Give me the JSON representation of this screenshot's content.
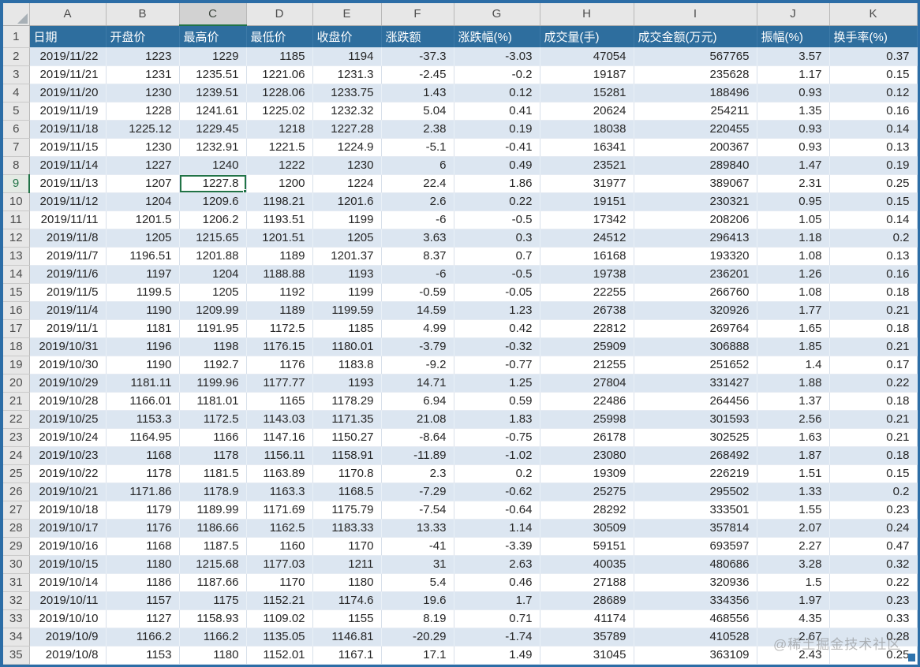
{
  "columns": [
    "A",
    "B",
    "C",
    "D",
    "E",
    "F",
    "G",
    "H",
    "I",
    "J",
    "K"
  ],
  "selected": {
    "row_number": 9,
    "column_letter": "C",
    "column_index": 2,
    "value": "1227.8"
  },
  "watermark": {
    "text": "@稀土掘金技术社区"
  },
  "colors": {
    "header_row_bg": "#2e6e9e",
    "alt_row_bg": "#dce6f1",
    "frame_border": "#2c6da6",
    "selection_green": "#217346",
    "gutter_bg": "#e7e7e7"
  },
  "table": {
    "headers": [
      "日期",
      "开盘价",
      "最高价",
      "最低价",
      "收盘价",
      "涨跌额",
      "涨跌幅(%)",
      "成交量(手)",
      "成交金额(万元)",
      "振幅(%)",
      "换手率(%)"
    ],
    "first_row_number": 2,
    "rows": [
      [
        "2019/11/22",
        "1223",
        "1229",
        "1185",
        "1194",
        "-37.3",
        "-3.03",
        "47054",
        "567765",
        "3.57",
        "0.37"
      ],
      [
        "2019/11/21",
        "1231",
        "1235.51",
        "1221.06",
        "1231.3",
        "-2.45",
        "-0.2",
        "19187",
        "235628",
        "1.17",
        "0.15"
      ],
      [
        "2019/11/20",
        "1230",
        "1239.51",
        "1228.06",
        "1233.75",
        "1.43",
        "0.12",
        "15281",
        "188496",
        "0.93",
        "0.12"
      ],
      [
        "2019/11/19",
        "1228",
        "1241.61",
        "1225.02",
        "1232.32",
        "5.04",
        "0.41",
        "20624",
        "254211",
        "1.35",
        "0.16"
      ],
      [
        "2019/11/18",
        "1225.12",
        "1229.45",
        "1218",
        "1227.28",
        "2.38",
        "0.19",
        "18038",
        "220455",
        "0.93",
        "0.14"
      ],
      [
        "2019/11/15",
        "1230",
        "1232.91",
        "1221.5",
        "1224.9",
        "-5.1",
        "-0.41",
        "16341",
        "200367",
        "0.93",
        "0.13"
      ],
      [
        "2019/11/14",
        "1227",
        "1240",
        "1222",
        "1230",
        "6",
        "0.49",
        "23521",
        "289840",
        "1.47",
        "0.19"
      ],
      [
        "2019/11/13",
        "1207",
        "1227.8",
        "1200",
        "1224",
        "22.4",
        "1.86",
        "31977",
        "389067",
        "2.31",
        "0.25"
      ],
      [
        "2019/11/12",
        "1204",
        "1209.6",
        "1198.21",
        "1201.6",
        "2.6",
        "0.22",
        "19151",
        "230321",
        "0.95",
        "0.15"
      ],
      [
        "2019/11/11",
        "1201.5",
        "1206.2",
        "1193.51",
        "1199",
        "-6",
        "-0.5",
        "17342",
        "208206",
        "1.05",
        "0.14"
      ],
      [
        "2019/11/8",
        "1205",
        "1215.65",
        "1201.51",
        "1205",
        "3.63",
        "0.3",
        "24512",
        "296413",
        "1.18",
        "0.2"
      ],
      [
        "2019/11/7",
        "1196.51",
        "1201.88",
        "1189",
        "1201.37",
        "8.37",
        "0.7",
        "16168",
        "193320",
        "1.08",
        "0.13"
      ],
      [
        "2019/11/6",
        "1197",
        "1204",
        "1188.88",
        "1193",
        "-6",
        "-0.5",
        "19738",
        "236201",
        "1.26",
        "0.16"
      ],
      [
        "2019/11/5",
        "1199.5",
        "1205",
        "1192",
        "1199",
        "-0.59",
        "-0.05",
        "22255",
        "266760",
        "1.08",
        "0.18"
      ],
      [
        "2019/11/4",
        "1190",
        "1209.99",
        "1189",
        "1199.59",
        "14.59",
        "1.23",
        "26738",
        "320926",
        "1.77",
        "0.21"
      ],
      [
        "2019/11/1",
        "1181",
        "1191.95",
        "1172.5",
        "1185",
        "4.99",
        "0.42",
        "22812",
        "269764",
        "1.65",
        "0.18"
      ],
      [
        "2019/10/31",
        "1196",
        "1198",
        "1176.15",
        "1180.01",
        "-3.79",
        "-0.32",
        "25909",
        "306888",
        "1.85",
        "0.21"
      ],
      [
        "2019/10/30",
        "1190",
        "1192.7",
        "1176",
        "1183.8",
        "-9.2",
        "-0.77",
        "21255",
        "251652",
        "1.4",
        "0.17"
      ],
      [
        "2019/10/29",
        "1181.11",
        "1199.96",
        "1177.77",
        "1193",
        "14.71",
        "1.25",
        "27804",
        "331427",
        "1.88",
        "0.22"
      ],
      [
        "2019/10/28",
        "1166.01",
        "1181.01",
        "1165",
        "1178.29",
        "6.94",
        "0.59",
        "22486",
        "264456",
        "1.37",
        "0.18"
      ],
      [
        "2019/10/25",
        "1153.3",
        "1172.5",
        "1143.03",
        "1171.35",
        "21.08",
        "1.83",
        "25998",
        "301593",
        "2.56",
        "0.21"
      ],
      [
        "2019/10/24",
        "1164.95",
        "1166",
        "1147.16",
        "1150.27",
        "-8.64",
        "-0.75",
        "26178",
        "302525",
        "1.63",
        "0.21"
      ],
      [
        "2019/10/23",
        "1168",
        "1178",
        "1156.11",
        "1158.91",
        "-11.89",
        "-1.02",
        "23080",
        "268492",
        "1.87",
        "0.18"
      ],
      [
        "2019/10/22",
        "1178",
        "1181.5",
        "1163.89",
        "1170.8",
        "2.3",
        "0.2",
        "19309",
        "226219",
        "1.51",
        "0.15"
      ],
      [
        "2019/10/21",
        "1171.86",
        "1178.9",
        "1163.3",
        "1168.5",
        "-7.29",
        "-0.62",
        "25275",
        "295502",
        "1.33",
        "0.2"
      ],
      [
        "2019/10/18",
        "1179",
        "1189.99",
        "1171.69",
        "1175.79",
        "-7.54",
        "-0.64",
        "28292",
        "333501",
        "1.55",
        "0.23"
      ],
      [
        "2019/10/17",
        "1176",
        "1186.66",
        "1162.5",
        "1183.33",
        "13.33",
        "1.14",
        "30509",
        "357814",
        "2.07",
        "0.24"
      ],
      [
        "2019/10/16",
        "1168",
        "1187.5",
        "1160",
        "1170",
        "-41",
        "-3.39",
        "59151",
        "693597",
        "2.27",
        "0.47"
      ],
      [
        "2019/10/15",
        "1180",
        "1215.68",
        "1177.03",
        "1211",
        "31",
        "2.63",
        "40035",
        "480686",
        "3.28",
        "0.32"
      ],
      [
        "2019/10/14",
        "1186",
        "1187.66",
        "1170",
        "1180",
        "5.4",
        "0.46",
        "27188",
        "320936",
        "1.5",
        "0.22"
      ],
      [
        "2019/10/11",
        "1157",
        "1175",
        "1152.21",
        "1174.6",
        "19.6",
        "1.7",
        "28689",
        "334356",
        "1.97",
        "0.23"
      ],
      [
        "2019/10/10",
        "1127",
        "1158.93",
        "1109.02",
        "1155",
        "8.19",
        "0.71",
        "41174",
        "468556",
        "4.35",
        "0.33"
      ],
      [
        "2019/10/9",
        "1166.2",
        "1166.2",
        "1135.05",
        "1146.81",
        "-20.29",
        "-1.74",
        "35789",
        "410528",
        "2.67",
        "0.28"
      ],
      [
        "2019/10/8",
        "1153",
        "1180",
        "1152.01",
        "1167.1",
        "17.1",
        "1.49",
        "31045",
        "363109",
        "2.43",
        "0.25"
      ]
    ]
  }
}
